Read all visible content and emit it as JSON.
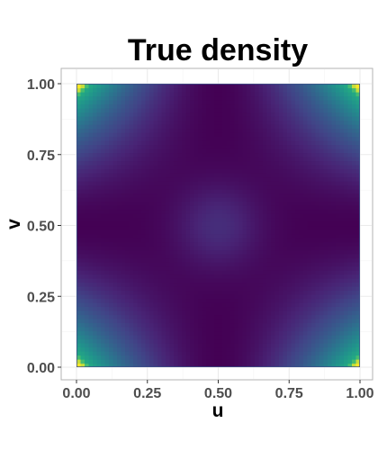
{
  "chart_data": {
    "type": "heatmap",
    "title": "True density",
    "xlabel": "u",
    "ylabel": "v",
    "xlim": [
      0,
      1
    ],
    "ylim": [
      0,
      1
    ],
    "x_ticks": [
      0,
      0.25,
      0.5,
      0.75,
      1
    ],
    "y_ticks": [
      0,
      0.25,
      0.5,
      0.75,
      1
    ],
    "x_tick_labels": [
      "0.00",
      "0.25",
      "0.50",
      "0.75",
      "1.00"
    ],
    "y_tick_labels": [
      "0.00",
      "0.25",
      "0.50",
      "0.75",
      "1.00"
    ],
    "grid": true,
    "legend": "none",
    "colormap": "viridis",
    "peaks": [
      {
        "u": 0.01,
        "v": 0.01
      },
      {
        "u": 0.99,
        "v": 0.01
      },
      {
        "u": 0.01,
        "v": 0.99
      },
      {
        "u": 0.99,
        "v": 0.99
      }
    ],
    "center_plateau": {
      "u": 0.5,
      "v": 0.5
    },
    "colors": {
      "low": "#440154",
      "mid": "#3b528b",
      "center": "#33638d",
      "high": "#5ec962",
      "peak": "#fde725"
    }
  }
}
